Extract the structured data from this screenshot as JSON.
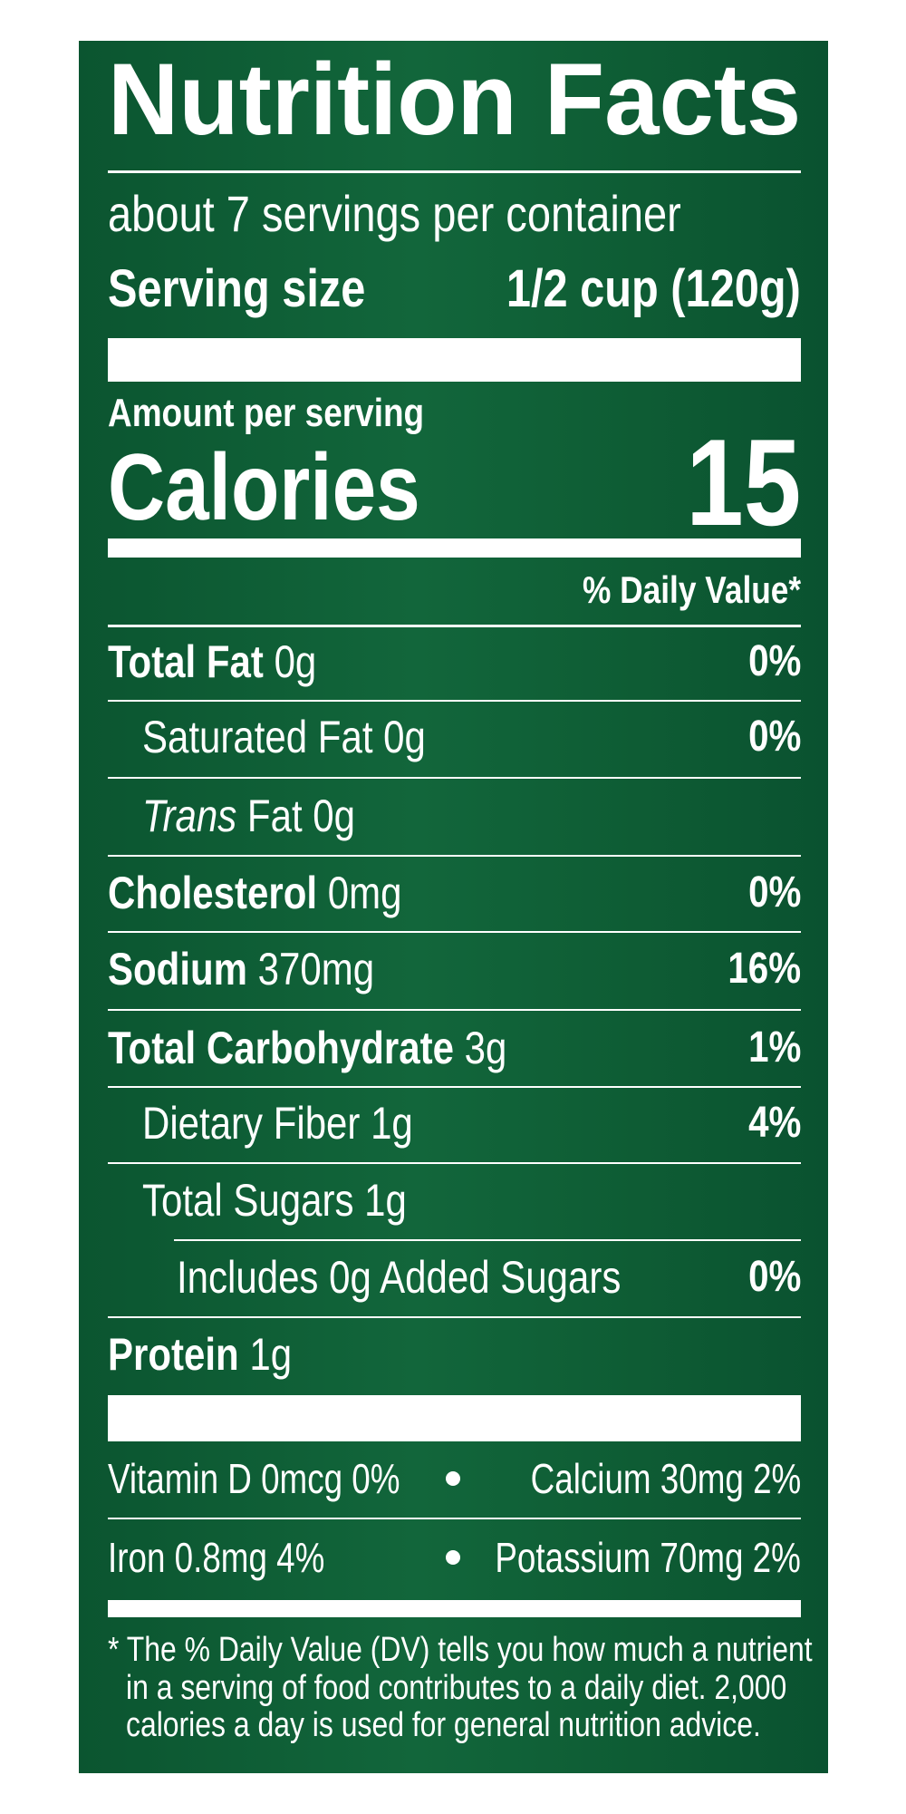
{
  "header": {
    "title": "Nutrition Facts",
    "servings": "about 7 servings per container",
    "serving_size_label": "Serving size",
    "serving_size_value": "1/2 cup (120g)"
  },
  "calories": {
    "amount_per_serving": "Amount per serving",
    "label": "Calories",
    "value": "15"
  },
  "dv_header": "% Daily Value*",
  "nutrients": [
    {
      "name": "Total Fat",
      "amount": "0g",
      "dv": "0%"
    },
    {
      "name": "Saturated Fat",
      "amount": "0g",
      "dv": "0%"
    },
    {
      "name_italic": "Trans",
      "name": "Fat",
      "amount": "0g"
    },
    {
      "name": "Cholesterol",
      "amount": "0mg",
      "dv": "0%"
    },
    {
      "name": "Sodium",
      "amount": "370mg",
      "dv": "16%"
    },
    {
      "name": "Total Carbohydrate",
      "amount": "3g",
      "dv": "1%"
    },
    {
      "name": "Dietary Fiber",
      "amount": "1g",
      "dv": "4%"
    },
    {
      "name": "Total Sugars",
      "amount": "1g"
    },
    {
      "name": "Includes 0g Added Sugars",
      "dv": "0%"
    },
    {
      "name": "Protein",
      "amount": "1g"
    }
  ],
  "vitamins": [
    [
      "Vitamin D 0mcg 0%",
      "Calcium 30mg 2%"
    ],
    [
      "Iron 0.8mg 4%",
      "Potassium 70mg 2%"
    ]
  ],
  "footnote": [
    "* The % Daily Value (DV) tells you how much a nutrient",
    "in a serving of food contributes to a daily diet. 2,000",
    "calories a day is used for general nutrition advice."
  ]
}
